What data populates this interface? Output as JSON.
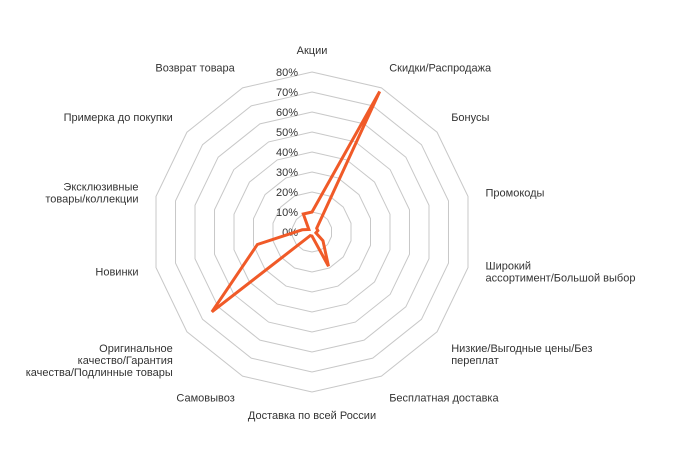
{
  "chart_data": {
    "type": "radar",
    "title": "",
    "categories": [
      "Акции",
      "Скидки/Распродажа",
      "Бонусы",
      "Промокоды",
      "Широкий ассортимент/Большой выбор",
      "Низкие/Выгодные цены/Без переплат",
      "Бесплатная доставка",
      "Доставка по всей России",
      "Самовывоз",
      "Оригинальное качество/Гарантия качества/Подлинные товары",
      "Новинки",
      "Эксклюзивные товары/коллекции",
      "Примерка до покупки",
      "Возврат товара"
    ],
    "category_lines": [
      [
        "Акции"
      ],
      [
        "Скидки/Распродажа"
      ],
      [
        "Бонусы"
      ],
      [
        "Промокоды"
      ],
      [
        "Широкий",
        "ассортимент/Большой выбор"
      ],
      [
        "Низкие/Выгодные цены/Без",
        "переплат"
      ],
      [
        "Бесплатная доставка"
      ],
      [
        "Доставка по всей России"
      ],
      [
        "Самовывоз"
      ],
      [
        "Оригинальное",
        "качество/Гарантия",
        "качества/Подлинные товары"
      ],
      [
        "Новинки"
      ],
      [
        "Эксклюзивные",
        "товары/коллекции"
      ],
      [
        "Примерка до покупки"
      ],
      [
        "Возврат товара"
      ]
    ],
    "series": [
      {
        "values": [
          10,
          78,
          3,
          3,
          2,
          7,
          19,
          2,
          2,
          64,
          28,
          5,
          2,
          10
        ]
      }
    ],
    "r_range": [
      0,
      80
    ],
    "r_ticks": [
      "0%",
      "10%",
      "20%",
      "30%",
      "40%",
      "50%",
      "60%",
      "70%",
      "80%"
    ],
    "grid": true,
    "legend": "none",
    "colors": {
      "series": "#f05a28",
      "grid": "#c8c8c8",
      "text": "#333333"
    }
  }
}
